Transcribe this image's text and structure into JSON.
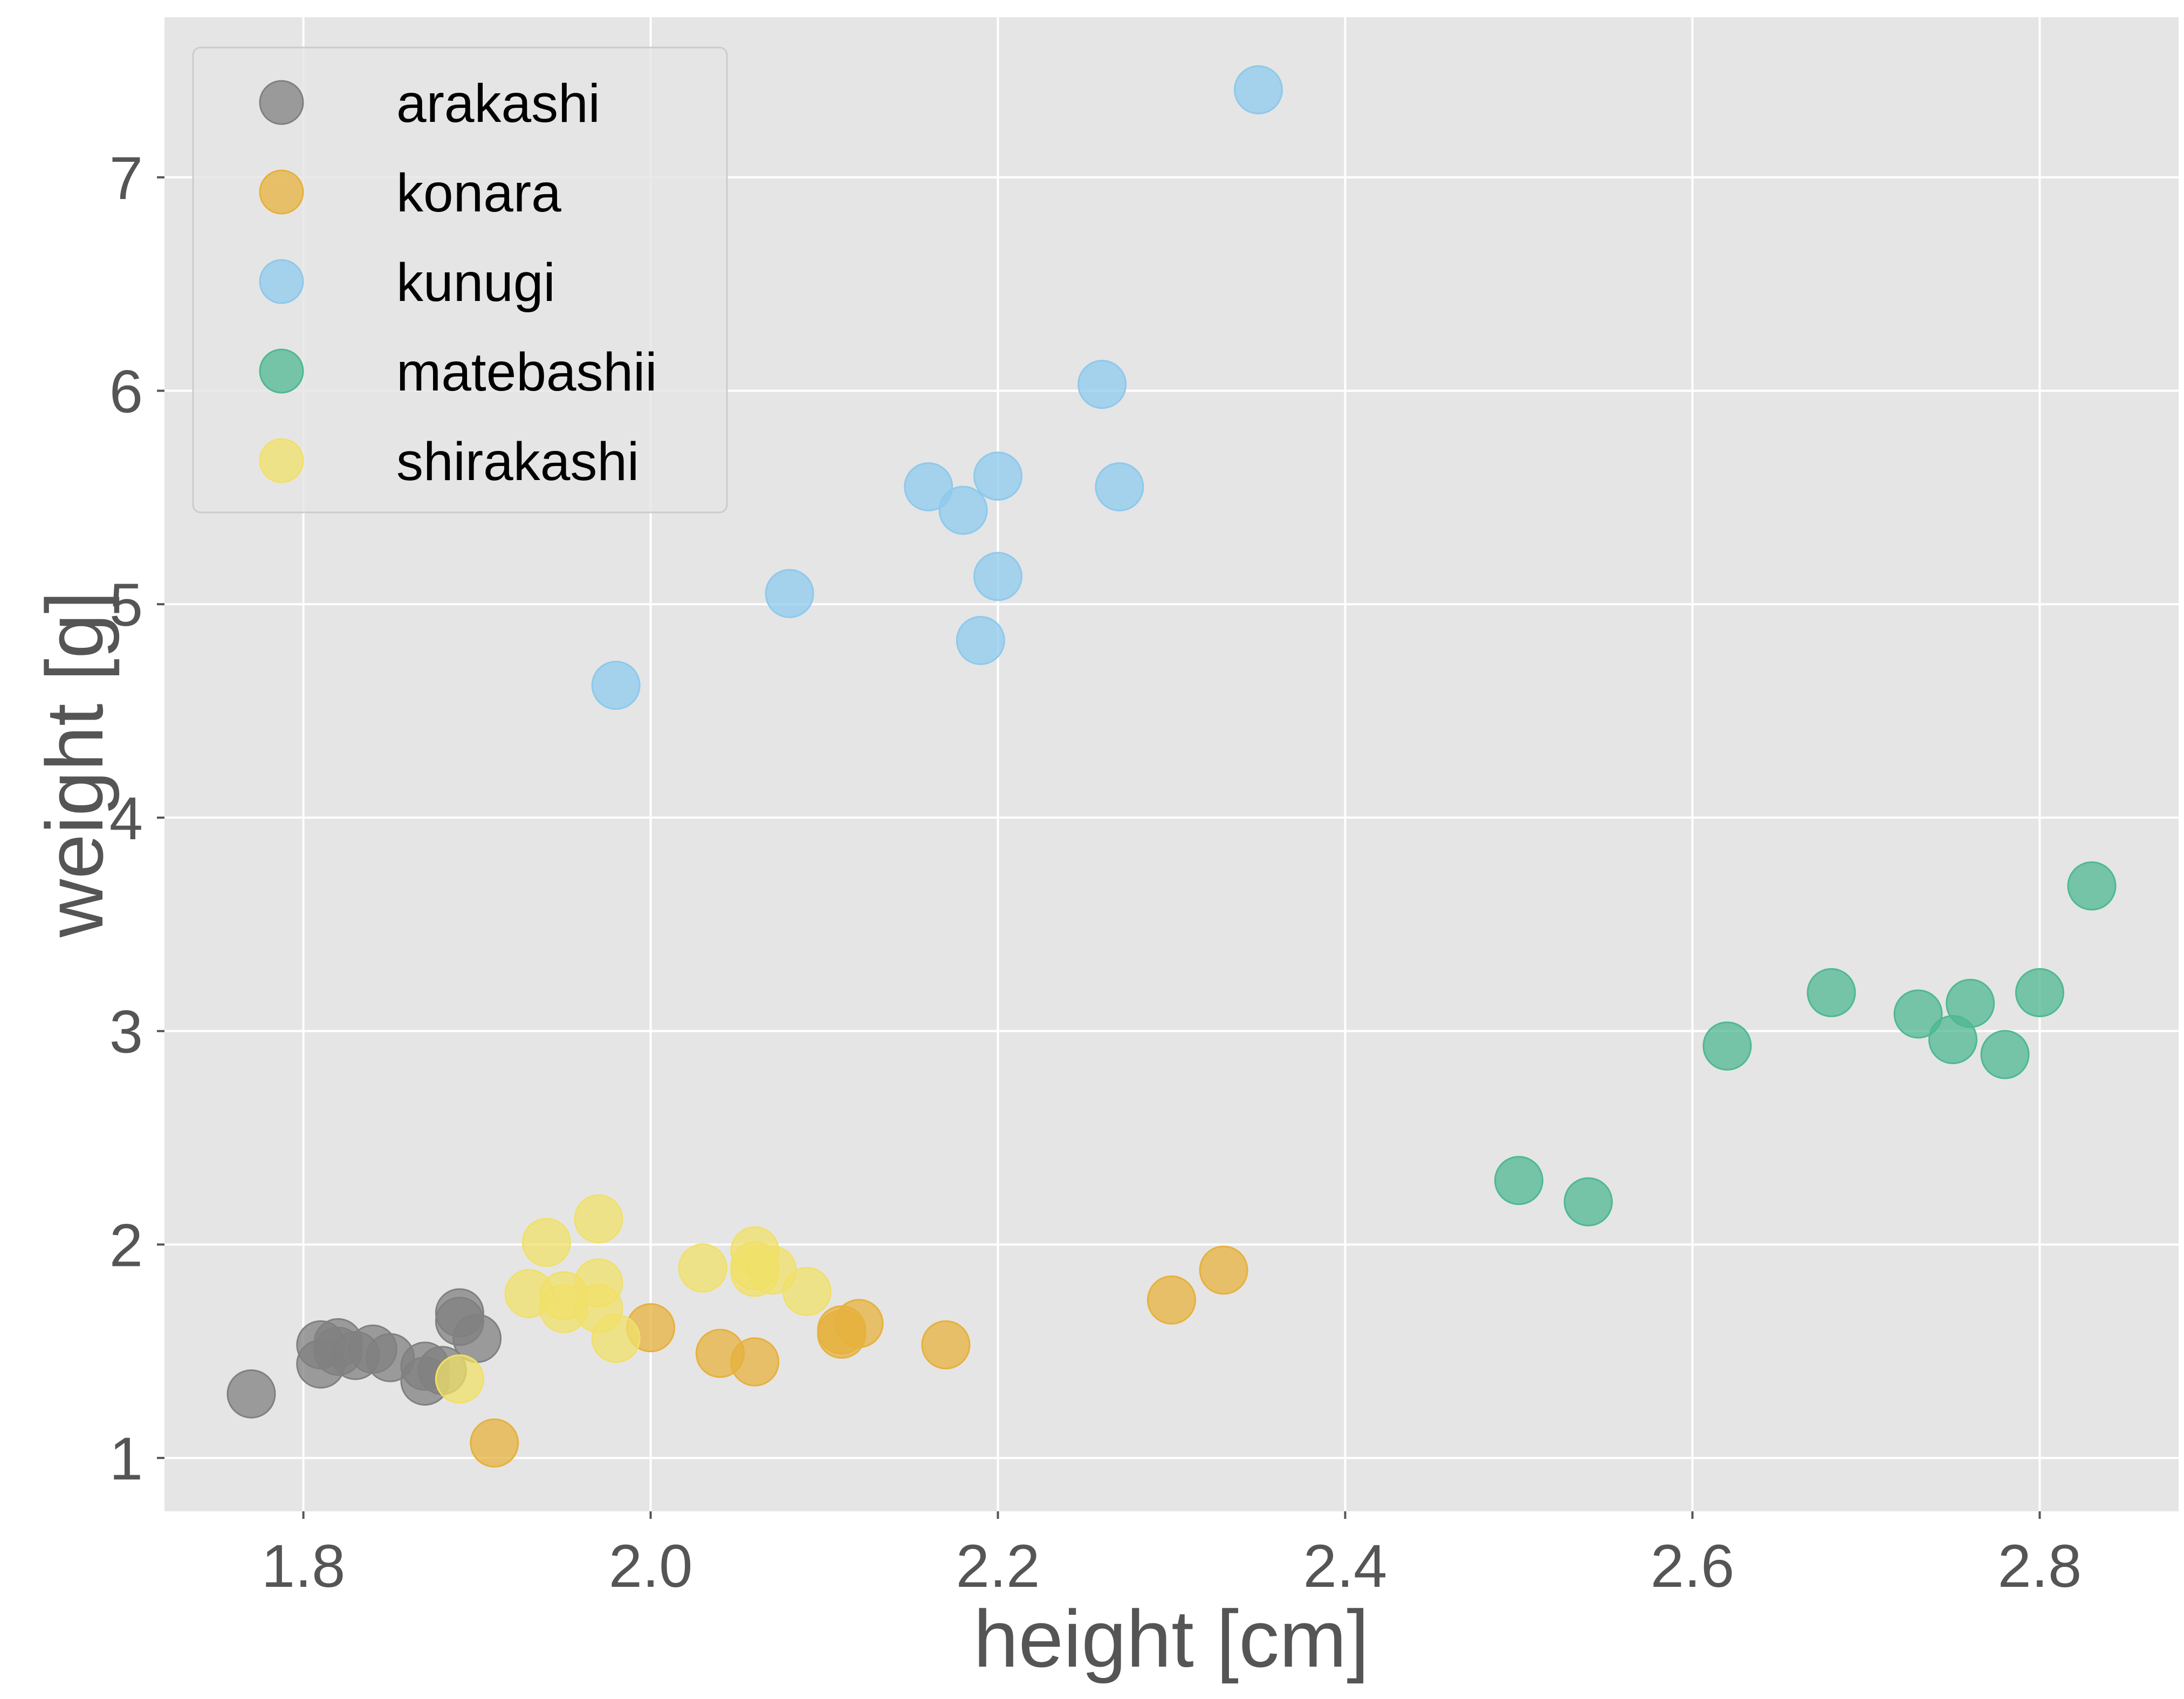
{
  "chart_data": {
    "type": "scatter",
    "title": "",
    "xlabel": "height [cm]",
    "ylabel": "weight [g]",
    "xlim": [
      1.72,
      2.88
    ],
    "ylim": [
      0.75,
      7.75
    ],
    "xticks": [
      1.8,
      2.0,
      2.2,
      2.4,
      2.6,
      2.8
    ],
    "xtick_labels": [
      "1.8",
      "2.0",
      "2.2",
      "2.4",
      "2.6",
      "2.8"
    ],
    "yticks": [
      1,
      2,
      3,
      4,
      5,
      6,
      7
    ],
    "ytick_labels": [
      "1",
      "2",
      "3",
      "4",
      "5",
      "6",
      "7"
    ],
    "grid": true,
    "background": "#e5e5e5",
    "legend_position": "top-left",
    "series": [
      {
        "name": "arakashi",
        "color": "#808080",
        "points": [
          [
            1.77,
            1.3
          ],
          [
            1.81,
            1.53
          ],
          [
            1.81,
            1.44
          ],
          [
            1.82,
            1.54
          ],
          [
            1.82,
            1.5
          ],
          [
            1.83,
            1.48
          ],
          [
            1.84,
            1.51
          ],
          [
            1.85,
            1.47
          ],
          [
            1.87,
            1.43
          ],
          [
            1.87,
            1.36
          ],
          [
            1.88,
            1.41
          ],
          [
            1.89,
            1.68
          ],
          [
            1.89,
            1.64
          ],
          [
            1.9,
            1.56
          ]
        ]
      },
      {
        "name": "konara",
        "color": "#e6b13d",
        "points": [
          [
            1.91,
            1.07
          ],
          [
            2.0,
            1.61
          ],
          [
            2.04,
            1.49
          ],
          [
            2.06,
            1.45
          ],
          [
            2.11,
            1.6
          ],
          [
            2.11,
            1.58
          ],
          [
            2.12,
            1.63
          ],
          [
            2.17,
            1.53
          ],
          [
            2.3,
            1.74
          ],
          [
            2.33,
            1.88
          ]
        ]
      },
      {
        "name": "kunugi",
        "color": "#8ec9ec",
        "points": [
          [
            1.98,
            4.62
          ],
          [
            2.08,
            5.05
          ],
          [
            2.16,
            5.55
          ],
          [
            2.18,
            5.44
          ],
          [
            2.19,
            4.83
          ],
          [
            2.2,
            5.6
          ],
          [
            2.2,
            5.13
          ],
          [
            2.26,
            6.03
          ],
          [
            2.27,
            5.55
          ],
          [
            2.35,
            7.41
          ]
        ]
      },
      {
        "name": "matebashii",
        "color": "#4fb892",
        "points": [
          [
            2.5,
            2.3
          ],
          [
            2.54,
            2.2
          ],
          [
            2.62,
            2.93
          ],
          [
            2.68,
            3.18
          ],
          [
            2.73,
            3.08
          ],
          [
            2.75,
            2.96
          ],
          [
            2.76,
            3.13
          ],
          [
            2.78,
            2.89
          ],
          [
            2.8,
            3.18
          ],
          [
            2.83,
            3.68
          ]
        ]
      },
      {
        "name": "shirakashi",
        "color": "#f0e06a",
        "points": [
          [
            1.89,
            1.37
          ],
          [
            1.93,
            1.77
          ],
          [
            1.94,
            2.01
          ],
          [
            1.95,
            1.76
          ],
          [
            1.95,
            1.7
          ],
          [
            1.97,
            2.12
          ],
          [
            1.97,
            1.82
          ],
          [
            1.97,
            1.7
          ],
          [
            1.98,
            1.56
          ],
          [
            2.03,
            1.89
          ],
          [
            2.06,
            1.97
          ],
          [
            2.06,
            1.9
          ],
          [
            2.06,
            1.87
          ],
          [
            2.07,
            1.88
          ],
          [
            2.09,
            1.78
          ]
        ]
      }
    ]
  }
}
